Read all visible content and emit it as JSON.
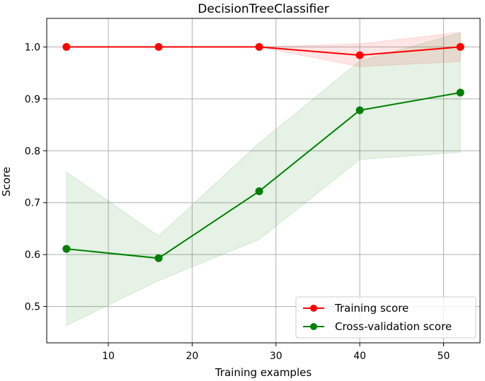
{
  "chart_data": {
    "type": "line",
    "title": "DecisionTreeClassifier",
    "xlabel": "Training examples",
    "ylabel": "Score",
    "xlim": [
      2.65,
      54.35
    ],
    "ylim": [
      0.43,
      1.055
    ],
    "xticks": [
      10,
      20,
      30,
      40,
      50
    ],
    "yticks": [
      0.5,
      0.6,
      0.7,
      0.8,
      0.9,
      1.0
    ],
    "ytick_labels": [
      "0.5",
      "0.6",
      "0.7",
      "0.8",
      "0.9",
      "1.0"
    ],
    "grid": true,
    "legend_position": "lower-right",
    "x": [
      5,
      16,
      28,
      40,
      52
    ],
    "series": [
      {
        "name": "Training score",
        "color": "#ff0000",
        "values": [
          1.0,
          1.0,
          1.0,
          0.984,
          1.0
        ],
        "band_lower": [
          1.0,
          1.0,
          1.0,
          0.962,
          0.972
        ],
        "band_upper": [
          1.0,
          1.0,
          1.0,
          1.006,
          1.028
        ]
      },
      {
        "name": "Cross-validation score",
        "color": "#008000",
        "values": [
          0.611,
          0.593,
          0.722,
          0.878,
          0.912
        ],
        "band_lower": [
          0.463,
          0.55,
          0.629,
          0.783,
          0.797
        ],
        "band_upper": [
          0.759,
          0.636,
          0.815,
          0.973,
          1.027
        ]
      }
    ]
  }
}
